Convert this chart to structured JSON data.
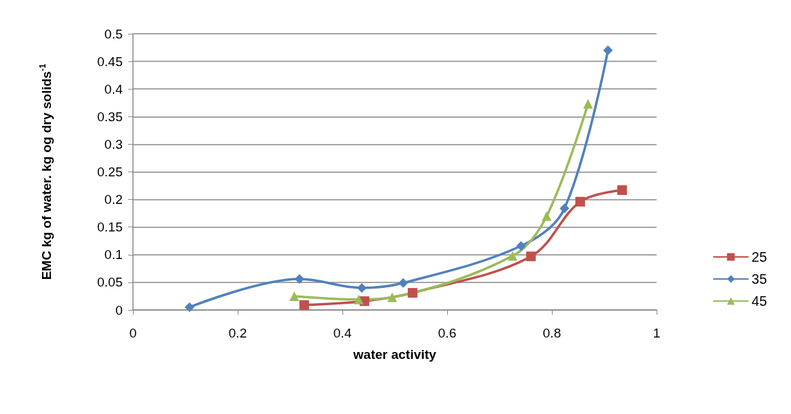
{
  "chart_data": {
    "type": "line",
    "xlabel": "water activity",
    "ylabel": "EMC kg of water. kg og dry solids$^{-1}$",
    "xlim": [
      0,
      1
    ],
    "xticks": [
      0,
      0.2,
      0.4,
      0.6,
      0.8,
      1
    ],
    "ylim": [
      0,
      0.5
    ],
    "yticks": [
      0,
      0.05,
      0.1,
      0.15,
      0.2,
      0.25,
      0.3,
      0.35,
      0.4,
      0.45,
      0.5
    ],
    "grid": "y",
    "legend": "right",
    "series": [
      {
        "name": "25",
        "color": "#c0504d",
        "marker": "square",
        "x": [
          0.327,
          0.442,
          0.534,
          0.76,
          0.854,
          0.934
        ],
        "values": [
          0.009,
          0.016,
          0.031,
          0.097,
          0.196,
          0.217
        ]
      },
      {
        "name": "35",
        "color": "#4f81bd",
        "marker": "diamond",
        "x": [
          0.108,
          0.318,
          0.437,
          0.516,
          0.741,
          0.824,
          0.907
        ],
        "values": [
          0.005,
          0.056,
          0.04,
          0.049,
          0.116,
          0.184,
          0.47
        ]
      },
      {
        "name": "45",
        "color": "#9bbb59",
        "marker": "triangle",
        "x": [
          0.308,
          0.431,
          0.495,
          0.725,
          0.79,
          0.869
        ],
        "values": [
          0.025,
          0.019,
          0.023,
          0.098,
          0.17,
          0.373
        ]
      }
    ]
  }
}
